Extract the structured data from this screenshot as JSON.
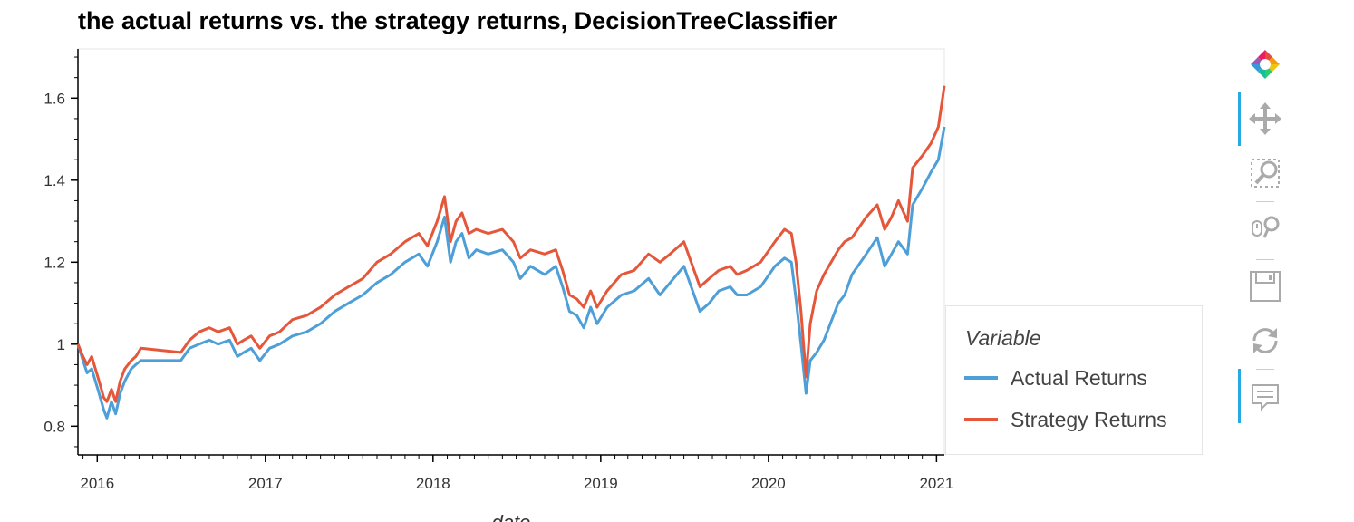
{
  "chart_data": {
    "type": "line",
    "title": "the actual returns vs. the strategy returns, DecisionTreeClassifier",
    "xlabel": "date",
    "ylabel": "",
    "x_ticks": [
      "2016",
      "2017",
      "2018",
      "2019",
      "2020",
      "2021"
    ],
    "y_ticks": [
      "0.8",
      "1",
      "1.2",
      "1.4",
      "1.6"
    ],
    "ylim": [
      0.73,
      1.72
    ],
    "xlim": [
      "2015-11-20",
      "2021-01-18"
    ],
    "legend_title": "Variable",
    "legend_position": "right",
    "grid": false,
    "series": [
      {
        "name": "Actual Returns",
        "color": "#4e9fd8",
        "points": [
          [
            "2015-11-20",
            1.0
          ],
          [
            "2015-12-01",
            0.96
          ],
          [
            "2015-12-10",
            0.93
          ],
          [
            "2015-12-20",
            0.94
          ],
          [
            "2016-01-05",
            0.88
          ],
          [
            "2016-01-15",
            0.84
          ],
          [
            "2016-01-22",
            0.82
          ],
          [
            "2016-02-01",
            0.86
          ],
          [
            "2016-02-10",
            0.83
          ],
          [
            "2016-02-20",
            0.88
          ],
          [
            "2016-03-01",
            0.91
          ],
          [
            "2016-03-15",
            0.94
          ],
          [
            "2016-03-25",
            0.95
          ],
          [
            "2016-04-05",
            0.96
          ],
          [
            "2016-07-01",
            0.96
          ],
          [
            "2016-07-20",
            0.99
          ],
          [
            "2016-08-10",
            1.0
          ],
          [
            "2016-09-01",
            1.01
          ],
          [
            "2016-09-20",
            1.0
          ],
          [
            "2016-10-15",
            1.01
          ],
          [
            "2016-11-01",
            0.97
          ],
          [
            "2016-11-15",
            0.98
          ],
          [
            "2016-12-01",
            0.99
          ],
          [
            "2016-12-20",
            0.96
          ],
          [
            "2017-01-10",
            0.99
          ],
          [
            "2017-02-01",
            1.0
          ],
          [
            "2017-03-01",
            1.02
          ],
          [
            "2017-04-01",
            1.03
          ],
          [
            "2017-05-01",
            1.05
          ],
          [
            "2017-06-01",
            1.08
          ],
          [
            "2017-07-01",
            1.1
          ],
          [
            "2017-08-01",
            1.12
          ],
          [
            "2017-09-01",
            1.15
          ],
          [
            "2017-10-01",
            1.17
          ],
          [
            "2017-11-01",
            1.2
          ],
          [
            "2017-12-01",
            1.22
          ],
          [
            "2017-12-20",
            1.19
          ],
          [
            "2018-01-10",
            1.25
          ],
          [
            "2018-01-26",
            1.31
          ],
          [
            "2018-02-08",
            1.2
          ],
          [
            "2018-02-20",
            1.25
          ],
          [
            "2018-03-05",
            1.27
          ],
          [
            "2018-03-20",
            1.21
          ],
          [
            "2018-04-05",
            1.23
          ],
          [
            "2018-05-01",
            1.22
          ],
          [
            "2018-06-01",
            1.23
          ],
          [
            "2018-06-25",
            1.2
          ],
          [
            "2018-07-10",
            1.16
          ],
          [
            "2018-08-01",
            1.19
          ],
          [
            "2018-09-01",
            1.17
          ],
          [
            "2018-09-25",
            1.19
          ],
          [
            "2018-10-10",
            1.14
          ],
          [
            "2018-10-25",
            1.08
          ],
          [
            "2018-11-10",
            1.07
          ],
          [
            "2018-11-25",
            1.04
          ],
          [
            "2018-12-10",
            1.09
          ],
          [
            "2018-12-24",
            1.05
          ],
          [
            "2019-01-15",
            1.09
          ],
          [
            "2019-02-15",
            1.12
          ],
          [
            "2019-03-15",
            1.13
          ],
          [
            "2019-04-15",
            1.16
          ],
          [
            "2019-05-10",
            1.12
          ],
          [
            "2019-06-01",
            1.15
          ],
          [
            "2019-07-01",
            1.19
          ],
          [
            "2019-08-05",
            1.08
          ],
          [
            "2019-08-25",
            1.1
          ],
          [
            "2019-09-15",
            1.13
          ],
          [
            "2019-10-10",
            1.14
          ],
          [
            "2019-10-25",
            1.12
          ],
          [
            "2019-11-15",
            1.12
          ],
          [
            "2019-12-15",
            1.14
          ],
          [
            "2020-01-15",
            1.19
          ],
          [
            "2020-02-05",
            1.21
          ],
          [
            "2020-02-20",
            1.2
          ],
          [
            "2020-03-01",
            1.11
          ],
          [
            "2020-03-12",
            1.0
          ],
          [
            "2020-03-23",
            0.88
          ],
          [
            "2020-04-01",
            0.96
          ],
          [
            "2020-04-15",
            0.98
          ],
          [
            "2020-05-01",
            1.01
          ],
          [
            "2020-06-01",
            1.1
          ],
          [
            "2020-06-15",
            1.12
          ],
          [
            "2020-07-01",
            1.17
          ],
          [
            "2020-08-01",
            1.22
          ],
          [
            "2020-08-25",
            1.26
          ],
          [
            "2020-09-10",
            1.19
          ],
          [
            "2020-09-25",
            1.22
          ],
          [
            "2020-10-10",
            1.25
          ],
          [
            "2020-10-30",
            1.22
          ],
          [
            "2020-11-10",
            1.34
          ],
          [
            "2020-12-01",
            1.38
          ],
          [
            "2020-12-20",
            1.42
          ],
          [
            "2021-01-05",
            1.45
          ],
          [
            "2021-01-18",
            1.53
          ]
        ]
      },
      {
        "name": "Strategy Returns",
        "color": "#e5573b",
        "points": [
          [
            "2015-11-20",
            1.0
          ],
          [
            "2015-12-01",
            0.97
          ],
          [
            "2015-12-10",
            0.95
          ],
          [
            "2015-12-20",
            0.97
          ],
          [
            "2016-01-05",
            0.91
          ],
          [
            "2016-01-15",
            0.87
          ],
          [
            "2016-01-22",
            0.86
          ],
          [
            "2016-02-01",
            0.89
          ],
          [
            "2016-02-10",
            0.86
          ],
          [
            "2016-02-20",
            0.91
          ],
          [
            "2016-03-01",
            0.94
          ],
          [
            "2016-03-15",
            0.96
          ],
          [
            "2016-03-25",
            0.97
          ],
          [
            "2016-04-05",
            0.99
          ],
          [
            "2016-07-01",
            0.98
          ],
          [
            "2016-07-20",
            1.01
          ],
          [
            "2016-08-10",
            1.03
          ],
          [
            "2016-09-01",
            1.04
          ],
          [
            "2016-09-20",
            1.03
          ],
          [
            "2016-10-15",
            1.04
          ],
          [
            "2016-11-01",
            1.0
          ],
          [
            "2016-11-15",
            1.01
          ],
          [
            "2016-12-01",
            1.02
          ],
          [
            "2016-12-20",
            0.99
          ],
          [
            "2017-01-10",
            1.02
          ],
          [
            "2017-02-01",
            1.03
          ],
          [
            "2017-03-01",
            1.06
          ],
          [
            "2017-04-01",
            1.07
          ],
          [
            "2017-05-01",
            1.09
          ],
          [
            "2017-06-01",
            1.12
          ],
          [
            "2017-07-01",
            1.14
          ],
          [
            "2017-08-01",
            1.16
          ],
          [
            "2017-09-01",
            1.2
          ],
          [
            "2017-10-01",
            1.22
          ],
          [
            "2017-11-01",
            1.25
          ],
          [
            "2017-12-01",
            1.27
          ],
          [
            "2017-12-20",
            1.24
          ],
          [
            "2018-01-10",
            1.3
          ],
          [
            "2018-01-26",
            1.36
          ],
          [
            "2018-02-08",
            1.25
          ],
          [
            "2018-02-20",
            1.3
          ],
          [
            "2018-03-05",
            1.32
          ],
          [
            "2018-03-20",
            1.27
          ],
          [
            "2018-04-05",
            1.28
          ],
          [
            "2018-05-01",
            1.27
          ],
          [
            "2018-06-01",
            1.28
          ],
          [
            "2018-06-25",
            1.25
          ],
          [
            "2018-07-10",
            1.21
          ],
          [
            "2018-08-01",
            1.23
          ],
          [
            "2018-09-01",
            1.22
          ],
          [
            "2018-09-25",
            1.23
          ],
          [
            "2018-10-10",
            1.18
          ],
          [
            "2018-10-25",
            1.12
          ],
          [
            "2018-11-10",
            1.11
          ],
          [
            "2018-11-25",
            1.09
          ],
          [
            "2018-12-10",
            1.13
          ],
          [
            "2018-12-24",
            1.09
          ],
          [
            "2019-01-15",
            1.13
          ],
          [
            "2019-02-15",
            1.17
          ],
          [
            "2019-03-15",
            1.18
          ],
          [
            "2019-04-15",
            1.22
          ],
          [
            "2019-05-10",
            1.2
          ],
          [
            "2019-06-01",
            1.22
          ],
          [
            "2019-07-01",
            1.25
          ],
          [
            "2019-08-05",
            1.14
          ],
          [
            "2019-08-25",
            1.16
          ],
          [
            "2019-09-15",
            1.18
          ],
          [
            "2019-10-10",
            1.19
          ],
          [
            "2019-10-25",
            1.17
          ],
          [
            "2019-11-15",
            1.18
          ],
          [
            "2019-12-15",
            1.2
          ],
          [
            "2020-01-15",
            1.25
          ],
          [
            "2020-02-05",
            1.28
          ],
          [
            "2020-02-20",
            1.27
          ],
          [
            "2020-03-01",
            1.2
          ],
          [
            "2020-03-12",
            1.08
          ],
          [
            "2020-03-23",
            0.92
          ],
          [
            "2020-04-01",
            1.05
          ],
          [
            "2020-04-15",
            1.13
          ],
          [
            "2020-05-01",
            1.17
          ],
          [
            "2020-06-01",
            1.23
          ],
          [
            "2020-06-15",
            1.25
          ],
          [
            "2020-07-01",
            1.26
          ],
          [
            "2020-08-01",
            1.31
          ],
          [
            "2020-08-25",
            1.34
          ],
          [
            "2020-09-10",
            1.28
          ],
          [
            "2020-09-25",
            1.31
          ],
          [
            "2020-10-10",
            1.35
          ],
          [
            "2020-10-30",
            1.3
          ],
          [
            "2020-11-10",
            1.43
          ],
          [
            "2020-12-01",
            1.46
          ],
          [
            "2020-12-20",
            1.49
          ],
          [
            "2021-01-05",
            1.53
          ],
          [
            "2021-01-18",
            1.63
          ]
        ]
      }
    ]
  },
  "toolbar": {
    "tools": [
      {
        "name": "bokeh-logo-icon",
        "active": false
      },
      {
        "name": "pan-icon",
        "active": true
      },
      {
        "name": "box-zoom-icon",
        "active": false
      },
      {
        "name": "wheel-zoom-icon",
        "active": false
      },
      {
        "name": "save-icon",
        "active": false
      },
      {
        "name": "reset-icon",
        "active": false
      },
      {
        "name": "hover-icon",
        "active": true
      }
    ]
  }
}
